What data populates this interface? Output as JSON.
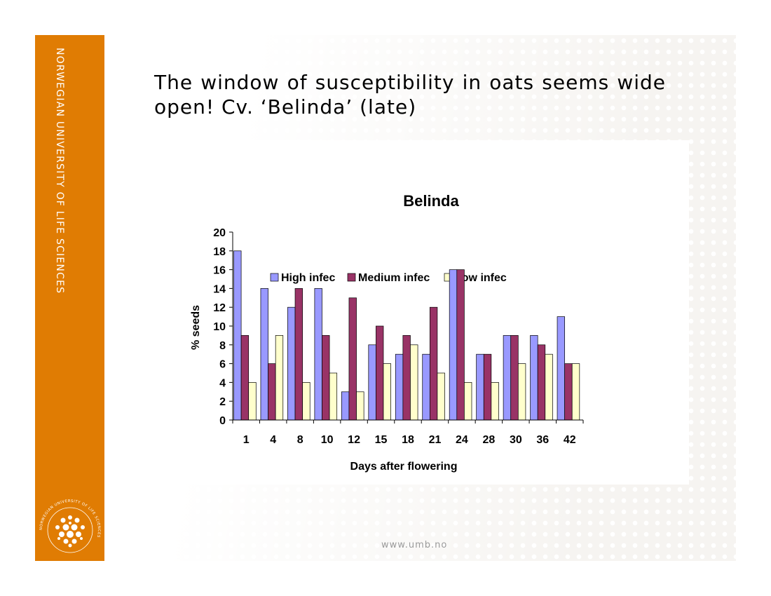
{
  "slide": {
    "sidebar_text": "NORWEGIAN UNIVERSITY OF LIFE SCIENCES",
    "title": "The window of susceptibility in oats seems wide open! Cv. ‘Belinda’ (late)",
    "footer": "www.umb.no",
    "seal_text": "NORWEGIAN UNIVERSITY OF LIFE SCIENCES",
    "colors": {
      "orange": "#e07c03"
    }
  },
  "chart_data": {
    "type": "bar",
    "title": "Belinda",
    "xlabel": "Days after flowering",
    "ylabel": "% seeds",
    "categories": [
      "1",
      "4",
      "8",
      "10",
      "12",
      "15",
      "18",
      "21",
      "24",
      "28",
      "30",
      "36",
      "42"
    ],
    "series": [
      {
        "name": "High infec",
        "color": "#9999ff",
        "values": [
          18,
          14,
          12,
          14,
          3,
          8,
          7,
          7,
          16,
          7,
          9,
          9,
          11
        ]
      },
      {
        "name": "Medium infec",
        "color": "#993366",
        "values": [
          9,
          6,
          14,
          9,
          13,
          10,
          9,
          12,
          16,
          7,
          9,
          8,
          6
        ]
      },
      {
        "name": "Low infec",
        "color": "#ffffcc",
        "values": [
          4,
          9,
          4,
          5,
          3,
          6,
          8,
          5,
          4,
          4,
          6,
          7,
          6
        ]
      }
    ],
    "ylim": [
      0,
      20
    ],
    "yticks": [
      "0",
      "2",
      "4",
      "6",
      "8",
      "10",
      "12",
      "14",
      "16",
      "18",
      "20"
    ],
    "legend_position": "top",
    "grid": false
  }
}
